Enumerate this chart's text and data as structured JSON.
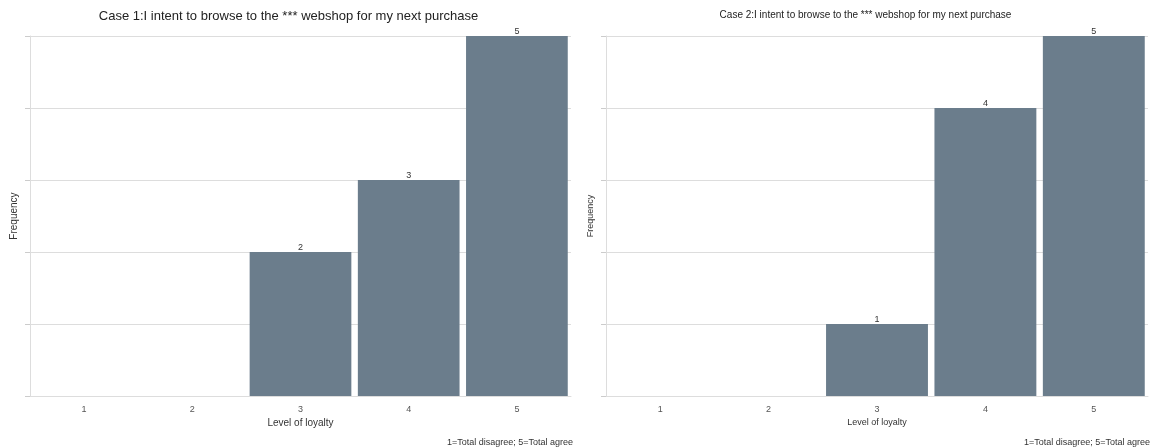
{
  "chart_data": [
    {
      "type": "bar",
      "title": "Case 1:I intent to browse to the *** webshop for my next purchase",
      "xlabel": "Level of loyalty",
      "ylabel": "Frequency",
      "categories": [
        "1",
        "2",
        "3",
        "4",
        "5"
      ],
      "values": [
        null,
        null,
        2,
        3,
        5
      ],
      "color": "#6b7d8c",
      "data_labels": true,
      "grid": "y",
      "tick_labels": "x",
      "annotations": [
        "1=Total disagree; 5=Total agree"
      ]
    },
    {
      "type": "bar",
      "title": "Case 2:I intent to browse to the *** webshop for my next purchase",
      "xlabel": "Level of loyalty",
      "ylabel": "Frequency",
      "categories": [
        "1",
        "2",
        "3",
        "4",
        "5"
      ],
      "values": [
        null,
        null,
        1,
        4,
        5
      ],
      "color": "#6b7d8c",
      "data_labels": true,
      "grid": "y",
      "tick_labels": "x",
      "annotations": [
        "1=Total disagree; 5=Total agree"
      ]
    }
  ]
}
